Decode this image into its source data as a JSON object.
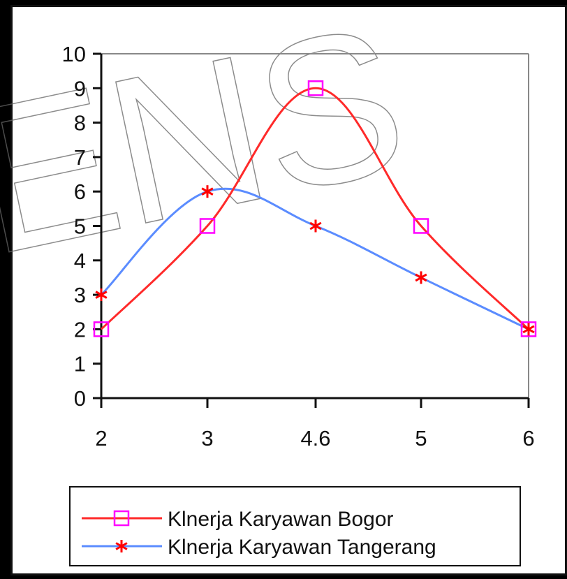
{
  "chart_data": {
    "type": "line",
    "title": "",
    "xlabel": "",
    "ylabel": "",
    "categories": [
      "2",
      "3",
      "4.6",
      "5",
      "6"
    ],
    "ylim": [
      0,
      10
    ],
    "yticks": [
      "0",
      "1",
      "2",
      "3",
      "4",
      "5",
      "6",
      "7",
      "8",
      "9",
      "10"
    ],
    "grid": false,
    "legend_position": "bottom",
    "series": [
      {
        "name": "Klnerja Karyawan Bogor",
        "values": [
          2,
          5,
          9,
          5,
          2
        ],
        "color": "#ff2a2a",
        "marker": "square",
        "marker_color": "#ff00ff"
      },
      {
        "name": "Klnerja Karyawan Tangerang",
        "values": [
          3,
          6,
          5,
          3.5,
          2
        ],
        "color": "#5b8cff",
        "marker": "asterisk",
        "marker_color": "#ff0000"
      }
    ]
  },
  "watermark_text": "ENS"
}
